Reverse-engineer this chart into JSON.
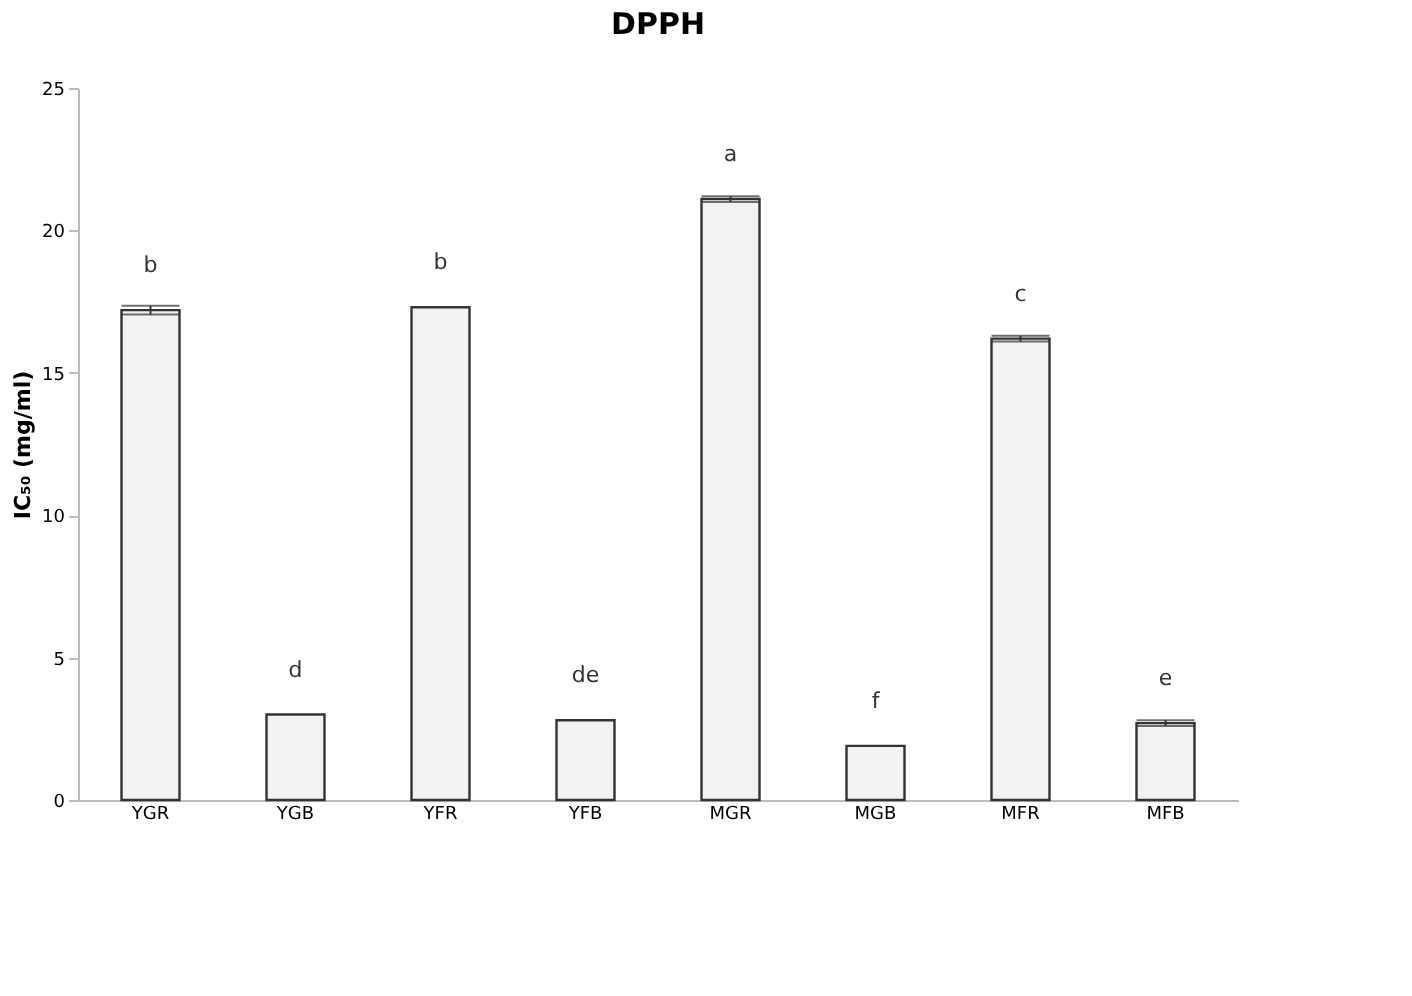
{
  "chart_data": {
    "type": "bar",
    "title": "DPPH",
    "ylabel": "IC₅₀ (mg/ml)",
    "categories": [
      "YGR",
      "YGB",
      "YFR",
      "YFB",
      "MGR",
      "MGB",
      "MFR",
      "MFB"
    ],
    "values": [
      17.2,
      3.0,
      17.3,
      2.8,
      21.1,
      1.9,
      16.2,
      2.7
    ],
    "errors": [
      0.15,
      null,
      null,
      null,
      0.1,
      null,
      0.1,
      0.1
    ],
    "color": "#f2f2f2",
    "ylim": [
      0,
      25
    ],
    "yticks": [
      0,
      5,
      10,
      15,
      20,
      25
    ],
    "grid": false,
    "annotations": [
      {
        "text": "b",
        "x": "YGR",
        "y": 17.2
      },
      {
        "text": "d",
        "x": "YGB",
        "y": 3.0
      },
      {
        "text": "b",
        "x": "YFR",
        "y": 17.3
      },
      {
        "text": "de",
        "x": "YFB",
        "y": 2.8
      },
      {
        "text": "a",
        "x": "MGR",
        "y": 21.1
      },
      {
        "text": "f",
        "x": "MGB",
        "y": 1.9
      },
      {
        "text": "c",
        "x": "MFR",
        "y": 16.2
      },
      {
        "text": "e",
        "x": "MFB",
        "y": 2.7
      }
    ]
  }
}
